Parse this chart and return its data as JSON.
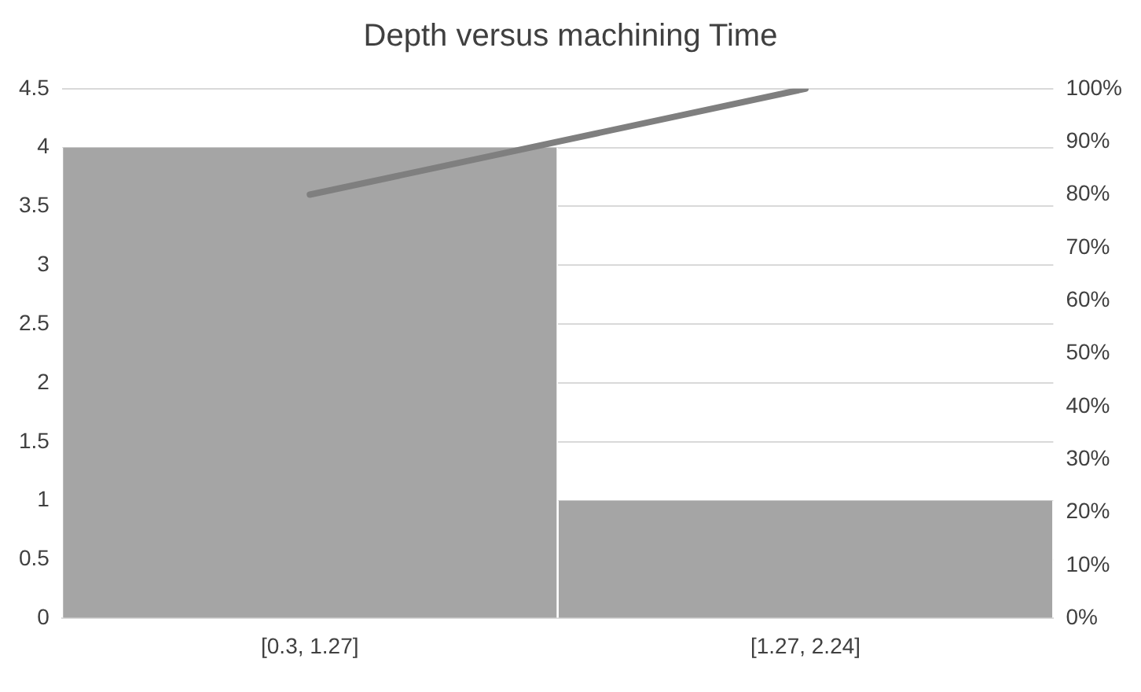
{
  "chart_data": {
    "type": "bar",
    "title": "Depth versus machining Time",
    "categories": [
      "[0.3, 1.27]",
      "[1.27, 2.24]"
    ],
    "series": [
      {
        "color": "#a5a5a5",
        "values": [
          4,
          1
        ]
      },
      {
        "type": "line",
        "axis": "y2",
        "color": "#7f7f7f",
        "values": [
          80,
          100
        ]
      }
    ],
    "ylim": [
      0,
      4.5
    ],
    "yticks": [
      0,
      0.5,
      1,
      1.5,
      2,
      2.5,
      3,
      3.5,
      4,
      4.5
    ],
    "y2lim": [
      0,
      100
    ],
    "y2ticks": [
      {
        "value": 0,
        "label": "0%"
      },
      {
        "value": 10,
        "label": "10%"
      },
      {
        "value": 20,
        "label": "20%"
      },
      {
        "value": 30,
        "label": "30%"
      },
      {
        "value": 40,
        "label": "40%"
      },
      {
        "value": 50,
        "label": "50%"
      },
      {
        "value": 60,
        "label": "60%"
      },
      {
        "value": 70,
        "label": "70%"
      },
      {
        "value": 80,
        "label": "80%"
      },
      {
        "value": 90,
        "label": "90%"
      },
      {
        "value": 100,
        "label": "100%"
      }
    ],
    "grid": "y",
    "legend": false,
    "marker": "none"
  }
}
